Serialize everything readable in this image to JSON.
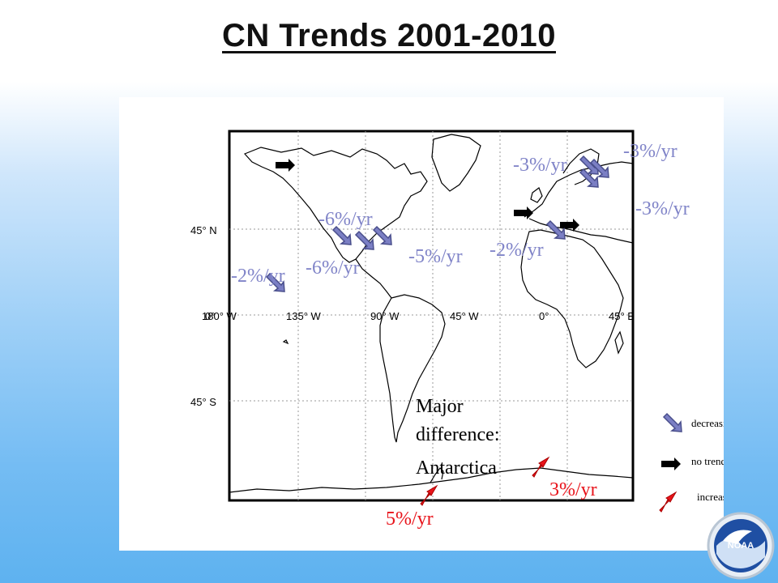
{
  "title": "CN Trends 2001-2010",
  "map": {
    "lon_ticks": [
      "180° W",
      "135° W",
      "90° W",
      "45° W",
      "0°",
      "45° E"
    ],
    "lat_ticks": [
      "45° N",
      "0°",
      "45° S"
    ]
  },
  "trend_labels": [
    {
      "text": "-3%/yr",
      "trend": "decreasing"
    },
    {
      "text": "-3%/yr",
      "trend": "decreasing"
    },
    {
      "text": "-3%/yr",
      "trend": "decreasing"
    },
    {
      "text": "-6%/yr",
      "trend": "decreasing"
    },
    {
      "text": "-2%/yr",
      "trend": "decreasing"
    },
    {
      "text": "-5%/yr",
      "trend": "decreasing"
    },
    {
      "text": "-6%/yr",
      "trend": "decreasing"
    },
    {
      "text": "-2%/yr",
      "trend": "decreasing"
    },
    {
      "text": "3%/yr",
      "trend": "increasing"
    },
    {
      "text": "5%/yr",
      "trend": "increasing"
    }
  ],
  "annotation": {
    "line1": "Major",
    "line2": "difference:",
    "line3": "Antarctica"
  },
  "legend": {
    "decreasing": "decreasing",
    "no_trend": "no trend",
    "increasing": "increasing"
  },
  "colors": {
    "decreasing_arrow": "#7b7fc4",
    "decreasing_label": "#8084c8",
    "no_trend_arrow": "#000000",
    "increasing_arrow": "#e8141b",
    "increasing_label": "#e8141b"
  },
  "logo": "NOAA"
}
